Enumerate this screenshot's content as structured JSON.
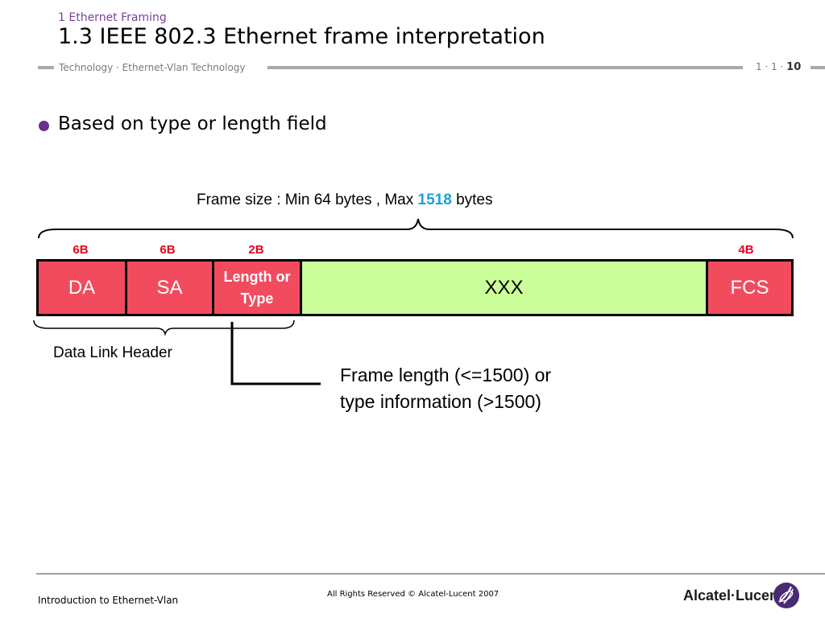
{
  "header": {
    "section": "1 Ethernet Framing",
    "title": "1.3 IEEE 802.3 Ethernet  frame interpretation",
    "subtitle": "Technology · Ethernet-Vlan Technology",
    "page_prefix": "1 · 1 · ",
    "page_number": "10"
  },
  "bullet": "Based on type or length field",
  "diagram": {
    "frame_size_prefix": "Frame size : Min 64 bytes , Max ",
    "frame_size_max": "1518",
    "frame_size_suffix": " bytes",
    "sizes": {
      "da": "6B",
      "sa": "6B",
      "lt": "2B",
      "fcs": "4B"
    },
    "fields": {
      "da": "DA",
      "sa": "SA",
      "lt_line1": "Length or",
      "lt_line2": "Type",
      "payload": "XXX",
      "fcs": "FCS"
    },
    "header_label": "Data Link Header",
    "note_line1": "Frame length (<=1500) or",
    "note_line2": "type information (>1500)",
    "colors": {
      "header_field": "#f24b5e",
      "payload": "#ccff99",
      "size_label": "#e8001c",
      "highlight": "#1aa3d6"
    }
  },
  "footer": {
    "left": "Introduction to Ethernet-Vlan",
    "center": "All Rights Reserved © Alcatel-Lucent 2007",
    "brand": "Alcatel·Lucent"
  }
}
